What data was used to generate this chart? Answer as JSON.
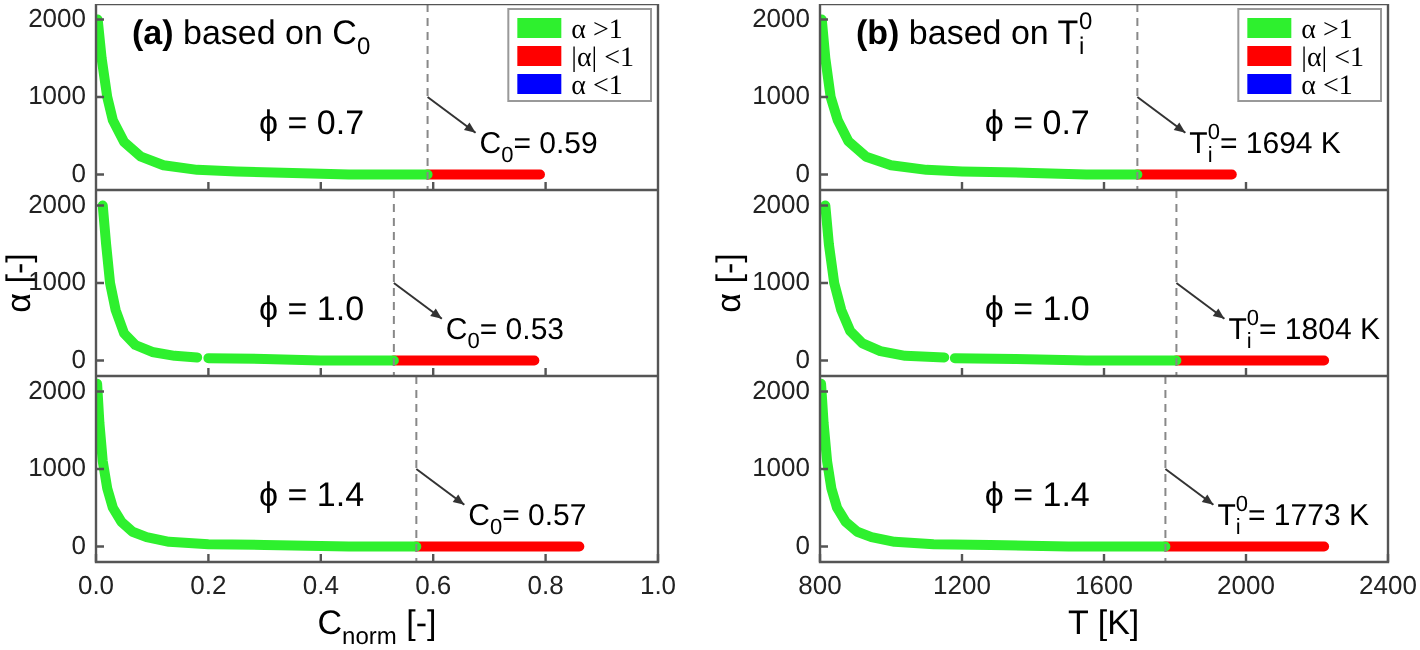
{
  "chart_data": [
    {
      "type": "line",
      "title": "(a) based on C$_{0}$",
      "xlim": [
        0,
        1
      ],
      "xticks": [
        0.2,
        0.4,
        0.6,
        0.8
      ],
      "ylim": [
        -200,
        2200
      ],
      "yticks": [
        0,
        1000,
        2000
      ],
      "tick_labels": "y",
      "legend": "top right",
      "annotations": [
        "ϕ = 0.7"
      ],
      "ref_lines": [
        {
          "axis": "x",
          "value": 0.59,
          "label": "C$_{0}$= 0.59",
          "color": "#888888",
          "line_style": "dashed"
        }
      ],
      "series": [
        {
          "name": "α >1",
          "color": "#2ef02e",
          "x": [
            0.003,
            0.01,
            0.02,
            0.03,
            0.05,
            0.08,
            0.12,
            0.18,
            0.25,
            0.35,
            0.45,
            0.59
          ],
          "values": [
            2000,
            1500,
            1000,
            700,
            420,
            230,
            120,
            60,
            40,
            20,
            0,
            0
          ]
        },
        {
          "name": "|α| <1",
          "color": "#ff0000",
          "x": [
            0.59,
            0.79
          ],
          "values": [
            0,
            0
          ]
        },
        {
          "name": "α <1",
          "color": "#0000ff"
        }
      ]
    },
    {
      "type": "line",
      "title": "(b) based on T$_{i}$$^{0}$",
      "xlim": [
        800,
        2400
      ],
      "xticks": [
        1200,
        1600,
        2000
      ],
      "ylim": [
        -200,
        2200
      ],
      "yticks": [
        0,
        1000,
        2000
      ],
      "tick_labels": "y",
      "legend": "top right",
      "annotations": [
        "ϕ = 0.7"
      ],
      "ref_lines": [
        {
          "axis": "x",
          "value": 1694,
          "label": "T$_{i}$$^{0}$= 1694 K",
          "color": "#888888",
          "line_style": "dashed"
        }
      ],
      "series": [
        {
          "name": "α >1",
          "color": "#2ef02e",
          "x": [
            805,
            815,
            830,
            850,
            880,
            930,
            1000,
            1100,
            1200,
            1400,
            1550,
            1694
          ],
          "values": [
            2000,
            1500,
            1000,
            700,
            430,
            230,
            120,
            60,
            40,
            20,
            0,
            0
          ]
        },
        {
          "name": "|α| <1",
          "color": "#ff0000",
          "x": [
            1694,
            1960
          ],
          "values": [
            0,
            0
          ]
        },
        {
          "name": "α <1",
          "color": "#0000ff"
        }
      ]
    },
    {
      "type": "line",
      "ylabel": "α [-]",
      "xlim": [
        0,
        1
      ],
      "xticks": [
        0.2,
        0.4,
        0.6,
        0.8
      ],
      "ylim": [
        -200,
        2200
      ],
      "yticks": [
        0,
        1000,
        2000
      ],
      "tick_labels": "y",
      "annotations": [
        "ϕ = 1.0"
      ],
      "ref_lines": [
        {
          "axis": "x",
          "value": 0.53,
          "label": "C$_{0}$= 0.53",
          "color": "#888888",
          "line_style": "dashed"
        }
      ],
      "series": [
        {
          "color": "#2ef02e",
          "x": [
            0.012,
            0.018,
            0.025,
            0.035,
            0.05,
            0.07,
            0.1,
            0.14,
            0.18,
            0.19,
            0.2,
            0.3,
            0.4,
            0.53
          ],
          "values": [
            2000,
            1500,
            1000,
            650,
            350,
            200,
            110,
            60,
            40,
            null,
            30,
            20,
            0,
            0
          ]
        },
        {
          "color": "#ff0000",
          "x": [
            0.53,
            0.78
          ],
          "values": [
            0,
            0
          ]
        }
      ]
    },
    {
      "type": "line",
      "ylabel": "α [-]",
      "xlim": [
        800,
        2400
      ],
      "xticks": [
        1200,
        1600,
        2000
      ],
      "ylim": [
        -200,
        2200
      ],
      "yticks": [
        0,
        1000,
        2000
      ],
      "tick_labels": "y",
      "annotations": [
        "ϕ = 1.0"
      ],
      "ref_lines": [
        {
          "axis": "x",
          "value": 1804,
          "label": "T$_{i}$$^{0}$= 1804 K",
          "color": "#888888",
          "line_style": "dashed"
        }
      ],
      "series": [
        {
          "color": "#2ef02e",
          "x": [
            815,
            825,
            840,
            860,
            885,
            920,
            970,
            1040,
            1150,
            1165,
            1180,
            1350,
            1550,
            1804
          ],
          "values": [
            2000,
            1500,
            1000,
            650,
            380,
            220,
            120,
            60,
            40,
            null,
            30,
            20,
            0,
            0
          ]
        },
        {
          "color": "#ff0000",
          "x": [
            1804,
            2220
          ],
          "values": [
            0,
            0
          ]
        }
      ]
    },
    {
      "type": "line",
      "xlabel": "C$_{norm}$ [-]",
      "xlim": [
        0,
        1
      ],
      "xticks": [
        {
          "value": 0,
          "label": "0.0"
        },
        0.2,
        0.4,
        0.6,
        0.8,
        {
          "value": 1,
          "label": "1.0"
        }
      ],
      "ylim": [
        -200,
        2200
      ],
      "yticks": [
        0,
        1000,
        2000
      ],
      "annotations": [
        "ϕ = 1.4"
      ],
      "ref_lines": [
        {
          "axis": "x",
          "value": 0.57,
          "label": "C$_{0}$= 0.57",
          "color": "#888888",
          "line_style": "dashed"
        }
      ],
      "series": [
        {
          "color": "#2ef02e",
          "x": [
            0.002,
            0.006,
            0.012,
            0.02,
            0.03,
            0.045,
            0.065,
            0.09,
            0.13,
            0.2,
            0.3,
            0.45,
            0.57
          ],
          "values": [
            2100,
            1600,
            1100,
            750,
            500,
            320,
            190,
            120,
            60,
            30,
            20,
            0,
            0
          ]
        },
        {
          "color": "#ff0000",
          "x": [
            0.57,
            0.86
          ],
          "values": [
            0,
            0
          ]
        }
      ]
    },
    {
      "type": "line",
      "xlabel": "T [K]",
      "xlim": [
        800,
        2400
      ],
      "xticks": [
        800,
        1200,
        1600,
        2000,
        2400
      ],
      "ylim": [
        -200,
        2200
      ],
      "yticks": [
        0,
        1000,
        2000
      ],
      "annotations": [
        "ϕ = 1.4"
      ],
      "ref_lines": [
        {
          "axis": "x",
          "value": 1773,
          "label": "T$_{i}$$^{0}$= 1773 K",
          "color": "#888888",
          "line_style": "dashed"
        }
      ],
      "series": [
        {
          "color": "#2ef02e",
          "x": [
            803,
            810,
            820,
            832,
            848,
            872,
            905,
            945,
            1010,
            1120,
            1280,
            1500,
            1773
          ],
          "values": [
            2100,
            1600,
            1100,
            750,
            500,
            320,
            190,
            120,
            60,
            30,
            20,
            0,
            0
          ]
        },
        {
          "color": "#ff0000",
          "x": [
            1773,
            2220
          ],
          "values": [
            0,
            0
          ]
        }
      ]
    }
  ]
}
